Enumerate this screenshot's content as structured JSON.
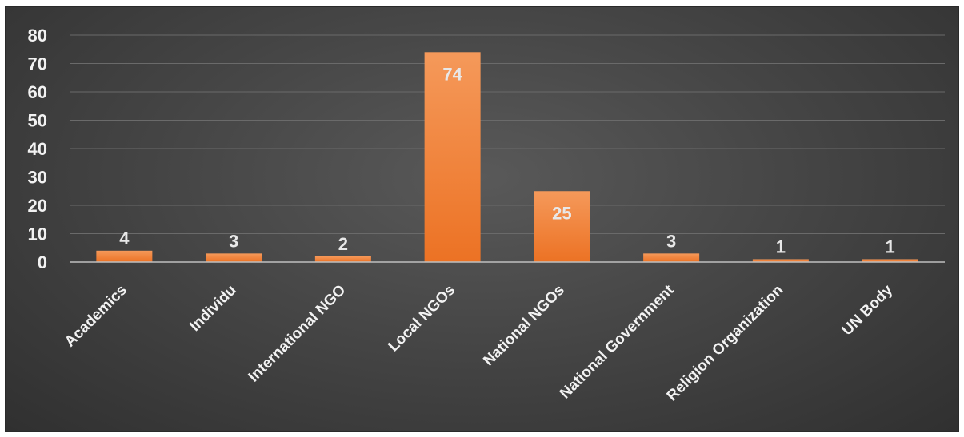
{
  "chart_data": {
    "type": "bar",
    "title": "",
    "xlabel": "",
    "ylabel": "",
    "categories": [
      "Academics",
      "Individu",
      "International NGO",
      "Local NGOs",
      "National NGOs",
      "National Government",
      "Religion Organization",
      "UN Body"
    ],
    "values": [
      4,
      3,
      2,
      74,
      25,
      3,
      1,
      1
    ],
    "ylim": [
      0,
      80
    ],
    "yticks": [
      0,
      10,
      20,
      30,
      40,
      50,
      60,
      70,
      80
    ],
    "grid": true,
    "legend": "none",
    "data_labels": true,
    "colors": {
      "bar_top": "#f5995a",
      "bar_bottom": "#ec7224",
      "background": "#404040",
      "text": "#f2f2f2"
    }
  }
}
